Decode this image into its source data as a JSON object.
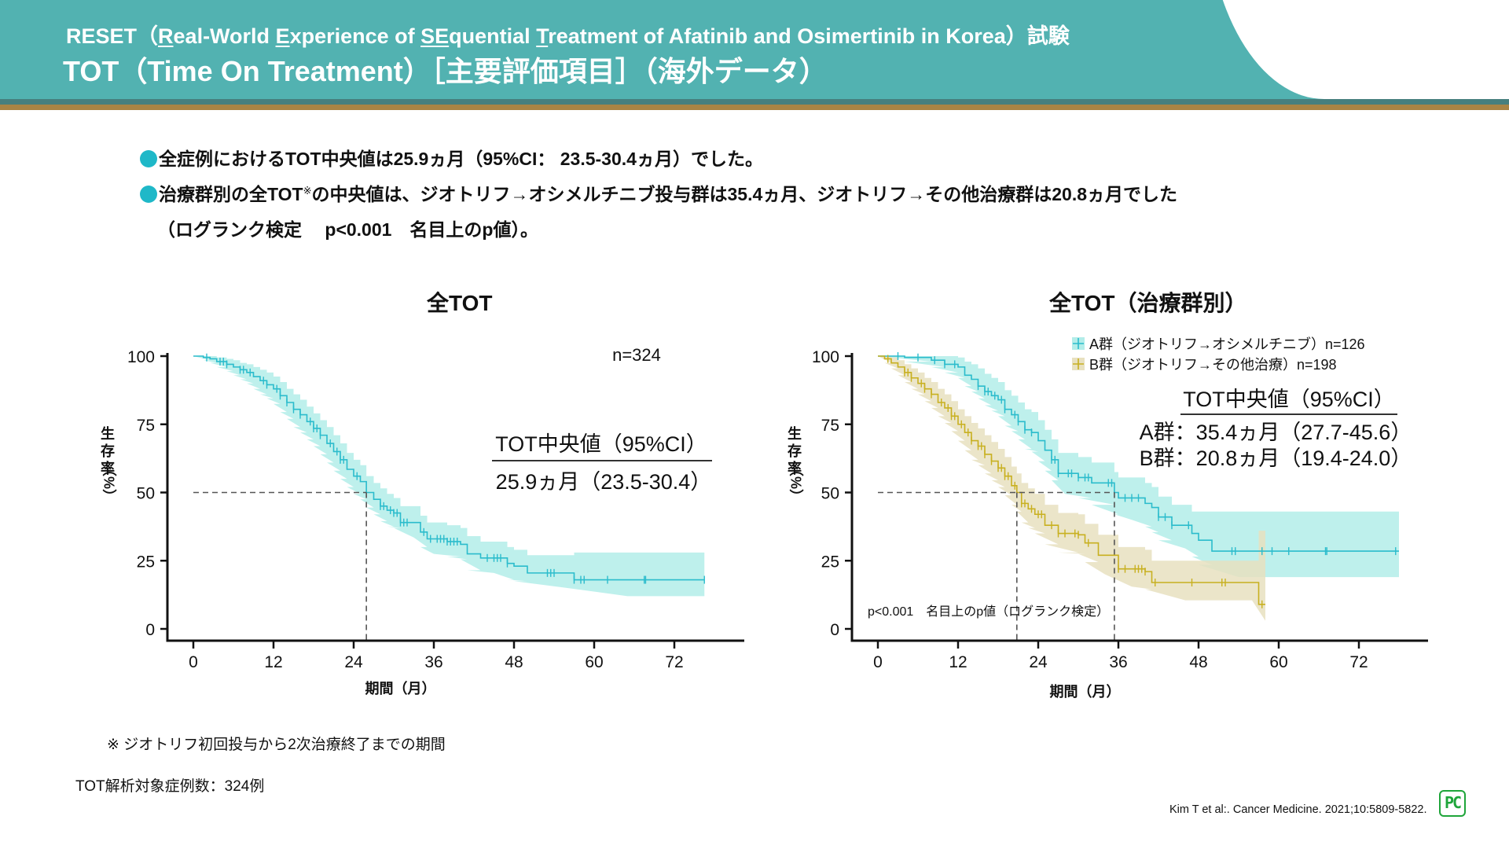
{
  "header": {
    "subtitle_parts": [
      {
        "text": "RESET（",
        "u": false
      },
      {
        "text": "R",
        "u": true
      },
      {
        "text": "eal-World ",
        "u": false
      },
      {
        "text": "E",
        "u": true
      },
      {
        "text": "xperience of ",
        "u": false
      },
      {
        "text": "SE",
        "u": true
      },
      {
        "text": "quential ",
        "u": false
      },
      {
        "text": "T",
        "u": true
      },
      {
        "text": "reatment of Afatinib and Osimertinib in Korea）試験",
        "u": false
      }
    ],
    "title": "TOT（Time On Treatment）［主要評価項目］（海外データ）",
    "colors": {
      "bar": "#52b2b1",
      "stripe_dark": "#467f7e",
      "stripe_gold": "#a98444"
    }
  },
  "bullets": {
    "line1": "全症例におけるTOT中央値は25.9ヵ月（95%CI： 23.5-30.4ヵ月）でした。",
    "line2_a": "治療群別の全TOT",
    "line2_note": "※",
    "line2_b": "の中央値は、ジオトリフ→オシメルチニブ投与群は35.4ヵ月、ジオトリフ→その他治療群は20.8ヵ月でした",
    "line3": "（ログランク検定　 p<0.001　名目上のp値）。",
    "bullet_color": "#1fb8c8"
  },
  "chart_data": [
    {
      "type": "line",
      "subtype": "kaplan-meier",
      "title": "全TOT",
      "xlabel": "期間（月）",
      "ylabel": "生存率（%）",
      "xlim": [
        0,
        78
      ],
      "ylim": [
        0,
        100
      ],
      "xticks": [
        0,
        12,
        24,
        36,
        48,
        60,
        72
      ],
      "yticks": [
        0,
        25,
        50,
        75,
        100
      ],
      "grid": false,
      "annotation_n": "n=324",
      "median_box": {
        "header": "TOT中央値（95%CI）",
        "lines": [
          "25.9ヵ月（23.5-30.4）"
        ]
      },
      "median_ref": {
        "x": 25.9,
        "y": 50
      },
      "series": [
        {
          "name": "全症例",
          "color": "#2bbccc",
          "band_color": "#b3ede9",
          "x": [
            0,
            1.5,
            2.5,
            3.5,
            5,
            6,
            7,
            8,
            9,
            10,
            11,
            12,
            13,
            14,
            15,
            16,
            17,
            18,
            19,
            20,
            21,
            22,
            23,
            24,
            25,
            25.9,
            27,
            28,
            29,
            30,
            31,
            33,
            34,
            35,
            36,
            38,
            40,
            41,
            43,
            45,
            47,
            48,
            50,
            56,
            57,
            65,
            72,
            76.5
          ],
          "y": [
            100,
            99.5,
            99,
            98,
            97,
            96,
            95,
            94,
            92.5,
            91,
            89.5,
            88,
            85.5,
            83,
            80.5,
            78.5,
            76,
            73.5,
            71,
            68,
            65,
            62,
            58.5,
            56,
            54,
            50,
            47.5,
            45,
            43.5,
            42.5,
            39,
            39,
            35.5,
            33,
            33,
            32,
            31,
            27.5,
            26,
            26,
            24,
            23,
            20.5,
            20.5,
            18,
            18,
            18,
            18
          ],
          "ci_lower": [
            100,
            98.5,
            97.5,
            96,
            94.5,
            93,
            91.5,
            90,
            88,
            86,
            84.5,
            82.5,
            79.5,
            77,
            74,
            72,
            69.5,
            67,
            64,
            61,
            58,
            55,
            52,
            49.5,
            47.5,
            44.5,
            42,
            39.5,
            37.5,
            37,
            33.5,
            33.5,
            30,
            27.5,
            27.5,
            26.5,
            25.5,
            21.5,
            20.5,
            20.5,
            18,
            17.5,
            15,
            15,
            12,
            12,
            12,
            12
          ],
          "ci_upper": [
            100,
            100,
            100,
            99.5,
            99,
            98.5,
            97.5,
            97,
            96,
            95,
            94,
            92.5,
            90.5,
            88,
            86,
            84,
            81.5,
            79,
            76.5,
            74,
            71,
            68,
            64.5,
            62,
            60,
            56,
            53.5,
            51.5,
            49.5,
            48,
            45,
            45,
            41.5,
            39,
            39,
            38,
            37,
            34,
            32,
            32,
            30,
            29,
            27,
            27,
            28,
            28,
            28,
            28
          ],
          "censor_x": [
            2,
            4,
            4.5,
            5,
            7,
            7.5,
            8.5,
            10.5,
            11,
            12.5,
            13,
            14,
            15,
            16,
            17.5,
            18,
            18.5,
            19,
            20.5,
            21.5,
            22,
            22.5,
            24.5,
            28,
            28.5,
            29.5,
            30,
            30.5,
            31,
            31.5,
            32,
            34.5,
            35.5,
            36.5,
            37,
            37.5,
            38,
            38.5,
            39,
            39.5,
            44,
            45,
            45.5,
            46,
            47,
            53,
            53.5,
            54,
            57,
            58,
            58.5,
            62,
            67.5,
            67.7,
            76.5
          ]
        }
      ]
    },
    {
      "type": "line",
      "subtype": "kaplan-meier",
      "title": "全TOT（治療群別）",
      "xlabel": "期間（月）",
      "ylabel": "生存率（%）",
      "xlim": [
        0,
        78
      ],
      "ylim": [
        0,
        100
      ],
      "xticks": [
        0,
        12,
        24,
        36,
        48,
        60,
        72
      ],
      "yticks": [
        0,
        25,
        50,
        75,
        100
      ],
      "grid": false,
      "legend_position": "top-right",
      "pvalue_text": "p<0.001　名目上のp値（ログランク検定）",
      "median_box": {
        "header": "TOT中央値（95%CI）",
        "lines": [
          "A群：35.4ヵ月（27.7-45.6）",
          "B群：20.8ヵ月（19.4-24.0）"
        ]
      },
      "median_refs": [
        {
          "x": 20.8,
          "y": 50
        },
        {
          "x": 35.4,
          "y": 50
        }
      ],
      "series": [
        {
          "name": "A群（ジオトリフ→オシメルチニブ）n=126",
          "color": "#2bbccc",
          "band_color": "#b3ede9",
          "x": [
            0,
            4,
            8,
            10,
            12,
            13,
            14,
            15,
            16,
            17,
            18,
            19,
            20,
            21,
            22,
            23,
            24,
            25,
            26,
            27,
            28,
            30,
            32,
            35.4,
            36,
            38,
            40,
            41,
            42,
            44,
            46,
            47,
            48,
            50,
            54,
            60,
            70,
            78
          ],
          "y": [
            100,
            99.5,
            98.5,
            97,
            96,
            93,
            91.5,
            89,
            87,
            85.5,
            84,
            80.5,
            78.5,
            76,
            73,
            72,
            69,
            65.5,
            62,
            57,
            57,
            55.5,
            53.5,
            50,
            48,
            48,
            46,
            44.5,
            41,
            38,
            38,
            35,
            32.5,
            28.5,
            28.5,
            28.5,
            28.5,
            28.5
          ],
          "ci_lower": [
            100,
            98,
            96,
            94,
            92,
            89,
            87,
            84.5,
            82,
            80,
            78,
            74.5,
            72.5,
            69.5,
            66,
            65,
            61.5,
            58,
            54.5,
            49.5,
            49.5,
            48,
            45.5,
            42,
            40,
            40,
            37.5,
            35.5,
            32.5,
            29.5,
            29.5,
            26.5,
            23.5,
            19,
            19,
            19,
            19,
            19
          ],
          "ci_upper": [
            100,
            100,
            100,
            100,
            99.5,
            98,
            97,
            95.5,
            93.5,
            92,
            90.5,
            87.5,
            85.5,
            83,
            80.5,
            79.5,
            76.5,
            73,
            69.5,
            64.5,
            64.5,
            63,
            61,
            57.5,
            55.5,
            55.5,
            53.5,
            52,
            48.5,
            45.5,
            45.5,
            43,
            43,
            43,
            43,
            43,
            43,
            43
          ],
          "censor_x": [
            3,
            6,
            8.5,
            10,
            11.5,
            15,
            16,
            16.5,
            17.5,
            18.5,
            19,
            20.5,
            21,
            22,
            23,
            26,
            26.5,
            27,
            28.5,
            29,
            30,
            31,
            31.5,
            34.5,
            35,
            37,
            38,
            39,
            42,
            43,
            44,
            46.5,
            53,
            53.5,
            57.5,
            59,
            61.5,
            67,
            67.2,
            77.5
          ]
        },
        {
          "name": "B群（ジオトリフ→その他治療）n=198",
          "color": "#c8b020",
          "band_color": "#e8e1c0",
          "x": [
            0,
            1,
            2,
            3,
            4,
            5,
            6,
            7,
            8,
            9,
            10,
            11,
            12,
            13,
            14,
            15,
            16,
            17,
            18,
            19,
            20,
            20.8,
            21.5,
            22.5,
            23.5,
            25,
            27,
            30,
            31,
            33,
            34,
            36,
            38,
            40,
            41,
            46,
            52,
            56,
            57,
            58
          ],
          "y": [
            100,
            99,
            97.5,
            96,
            94,
            92,
            90,
            88,
            86,
            83,
            81,
            78,
            75,
            72,
            69,
            67,
            64,
            61.5,
            59,
            56,
            52.5,
            50,
            46,
            44,
            42,
            38,
            35,
            34.5,
            31.5,
            27,
            27,
            22,
            22,
            21,
            17,
            17,
            17,
            17,
            9,
            9
          ],
          "ci_lower": [
            100,
            97.5,
            95.5,
            93,
            90.5,
            88,
            86,
            83.5,
            81,
            78,
            75.5,
            72.5,
            69,
            65.5,
            62,
            60,
            57,
            54.5,
            52,
            49,
            45.5,
            43,
            39,
            37,
            35,
            31,
            28,
            27.5,
            24.5,
            20,
            20,
            15.5,
            15.5,
            14.5,
            10.5,
            10.5,
            10.5,
            10.5,
            3,
            3
          ],
          "ci_upper": [
            100,
            100,
            99.5,
            98.5,
            97,
            95.5,
            94,
            92,
            90.5,
            88,
            86,
            83.5,
            80.5,
            78,
            75.5,
            73.5,
            71,
            68.5,
            66,
            63,
            59.5,
            57,
            53.5,
            51.5,
            49.5,
            45.5,
            42.5,
            42,
            38.5,
            34.5,
            34.5,
            30,
            30,
            29,
            25,
            25,
            25,
            25,
            36,
            36
          ],
          "censor_x": [
            1.5,
            4,
            4.5,
            5,
            6.5,
            7,
            8,
            9.5,
            10.5,
            11,
            11.5,
            12.5,
            13.5,
            14,
            15,
            15.5,
            16,
            17,
            18,
            18.5,
            19,
            19.5,
            20.5,
            21.5,
            22,
            23,
            24,
            24.5,
            26,
            27,
            28,
            29.5,
            30,
            31.5,
            36,
            37,
            38.5,
            39,
            39.5,
            40,
            41.5,
            47,
            51.5,
            52,
            57.5
          ]
        }
      ]
    }
  ],
  "footer": {
    "note": "※ ジオトリフ初回投与から2次治療終了までの期間",
    "sample": "TOT解析対象症例数：324例",
    "citation": "Kim T et al:. Cancer Medicine. 2021;10:5809-5822.",
    "logo_text": "PC",
    "logo_color": "#1fa53a"
  }
}
